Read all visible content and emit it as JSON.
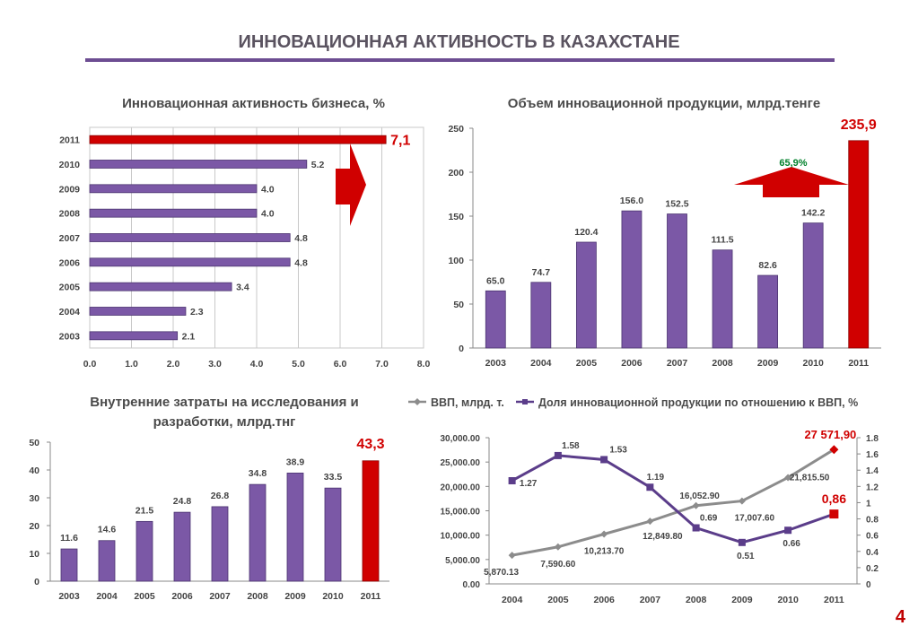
{
  "page": {
    "title": "ИННОВАЦИОННАЯ АКТИВНОСТЬ В КАЗАХСТАНЕ",
    "page_number": "4",
    "colors": {
      "accent": "#6d4d92",
      "bar": "#7b58a6",
      "highlight": "#d00000",
      "grid": "#c8c8c8"
    }
  },
  "chart_data": [
    {
      "type": "bar",
      "orientation": "horizontal",
      "title": "Инновационная активность бизнеса, %",
      "categories": [
        "2011",
        "2010",
        "2009",
        "2008",
        "2007",
        "2006",
        "2005",
        "2004",
        "2003"
      ],
      "values": [
        7.1,
        5.2,
        4.0,
        4.0,
        4.8,
        4.8,
        3.4,
        2.3,
        2.1
      ],
      "labels": [
        "7,1",
        "5.2",
        "4.0",
        "4.0",
        "4.8",
        "4.8",
        "3.4",
        "2.3",
        "2.1"
      ],
      "highlight": [
        "2011"
      ],
      "xlim": [
        0,
        8
      ],
      "xticks": [
        "0.0",
        "1.0",
        "2.0",
        "3.0",
        "4.0",
        "5.0",
        "6.0",
        "7.0",
        "8.0"
      ],
      "grid": true,
      "arrow": "right"
    },
    {
      "type": "bar",
      "title": "Объем инновационной продукции, млрд.тенге",
      "categories": [
        "2003",
        "2004",
        "2005",
        "2006",
        "2007",
        "2008",
        "2009",
        "2010",
        "2011"
      ],
      "values": [
        65.0,
        74.7,
        120.4,
        156.0,
        152.5,
        111.5,
        82.6,
        142.2,
        235.9
      ],
      "labels": [
        "65.0",
        "74.7",
        "120.4",
        "156.0",
        "152.5",
        "111.5",
        "82.6",
        "142.2",
        "235,9"
      ],
      "highlight": [
        "2011"
      ],
      "ylim": [
        0,
        250
      ],
      "yticks": [
        "0",
        "50",
        "100",
        "150",
        "200",
        "250"
      ],
      "annotation": "65,9%",
      "arrow": "up"
    },
    {
      "type": "bar",
      "title": "Внутренние затраты на исследования и разработки, млрд.тнг",
      "categories": [
        "2003",
        "2004",
        "2005",
        "2006",
        "2007",
        "2008",
        "2009",
        "2010",
        "2011"
      ],
      "values": [
        11.6,
        14.6,
        21.5,
        24.8,
        26.8,
        34.8,
        38.9,
        33.5,
        43.3
      ],
      "labels": [
        "11.6",
        "14.6",
        "21.5",
        "24.8",
        "26.8",
        "34.8",
        "38.9",
        "33.5",
        "43,3"
      ],
      "highlight": [
        "2011"
      ],
      "ylim": [
        0,
        50
      ],
      "yticks": [
        "0",
        "10",
        "20",
        "30",
        "40",
        "50"
      ]
    },
    {
      "type": "line",
      "x": [
        "2004",
        "2005",
        "2006",
        "2007",
        "2008",
        "2009",
        "2010",
        "2011"
      ],
      "series": [
        {
          "name": "ВВП, млрд. т.",
          "axis": "left",
          "color": "#8c8c8c",
          "values": [
            5870.13,
            7590.6,
            10213.7,
            12849.8,
            16052.9,
            17007.6,
            21815.5,
            27571.9
          ],
          "labels": [
            "5,870.13",
            "7,590.60",
            "10,213.70",
            "12,849.80",
            "16,052.90",
            "17,007.60",
            "21,815.50",
            "27 571,90"
          ]
        },
        {
          "name": "Доля инновационной продукции по отношению к ВВП, %",
          "axis": "right",
          "color": "#5b3d8a",
          "values": [
            1.27,
            1.58,
            1.53,
            1.19,
            0.69,
            0.51,
            0.66,
            0.86
          ],
          "labels": [
            "1.27",
            "1.58",
            "1.53",
            "1.19",
            "0.69",
            "0.51",
            "0.66",
            "0,86"
          ]
        }
      ],
      "ylim_left": [
        0,
        30000
      ],
      "yticks_left": [
        "0.00",
        "5,000.00",
        "10,000.00",
        "15,000.00",
        "20,000.00",
        "25,000.00",
        "30,000.00"
      ],
      "ylim_right": [
        0,
        1.8
      ],
      "yticks_right": [
        "0",
        "0.2",
        "0.4",
        "0.6",
        "0.8",
        "1",
        "1.2",
        "1.4",
        "1.6",
        "1.8"
      ],
      "legend": "top"
    }
  ]
}
